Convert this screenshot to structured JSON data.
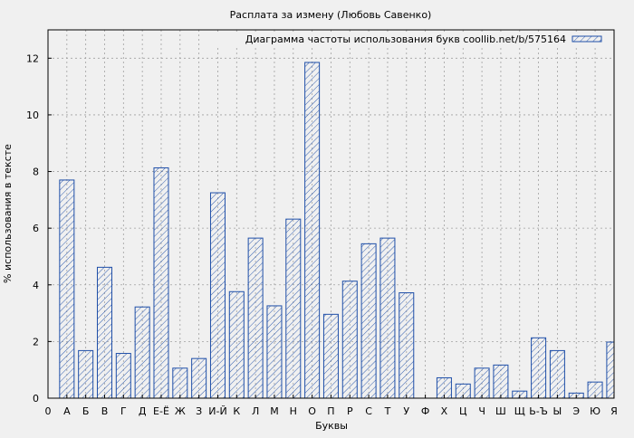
{
  "chart_data": {
    "type": "bar",
    "title": "Расплата за измену (Любовь Савенко)",
    "xlabel": "Буквы",
    "ylabel": "% использования в тексте",
    "ylim": [
      0,
      13
    ],
    "yticks": [
      0,
      2,
      4,
      6,
      8,
      10,
      12
    ],
    "x_start_label": "0",
    "categories": [
      "А",
      "Б",
      "В",
      "Г",
      "Д",
      "Е-Ё",
      "Ж",
      "З",
      "И-Й",
      "К",
      "Л",
      "М",
      "Н",
      "О",
      "П",
      "Р",
      "С",
      "Т",
      "У",
      "Ф",
      "Х",
      "Ц",
      "Ч",
      "Ш",
      "Щ",
      "Ь-Ъ",
      "Ы",
      "Э",
      "Ю",
      "Я"
    ],
    "series": [
      {
        "name": "Диаграмма частоты использования букв coollib.net/b/575164",
        "values": [
          7.7,
          1.68,
          4.62,
          1.58,
          3.22,
          8.13,
          1.06,
          1.4,
          7.25,
          3.76,
          5.65,
          3.26,
          6.32,
          11.85,
          2.96,
          4.13,
          5.45,
          5.65,
          3.72,
          0.0,
          0.72,
          0.5,
          1.06,
          1.17,
          0.25,
          2.13,
          1.68,
          0.18,
          0.57,
          1.98
        ]
      }
    ],
    "grid": true,
    "legend_position": "top-right",
    "colors": {
      "bar_stroke": "#1f4fa8",
      "hatch": "#1f4fa8",
      "plot_bg": "#f0f0f0",
      "grid": "#a0a0a0"
    }
  }
}
